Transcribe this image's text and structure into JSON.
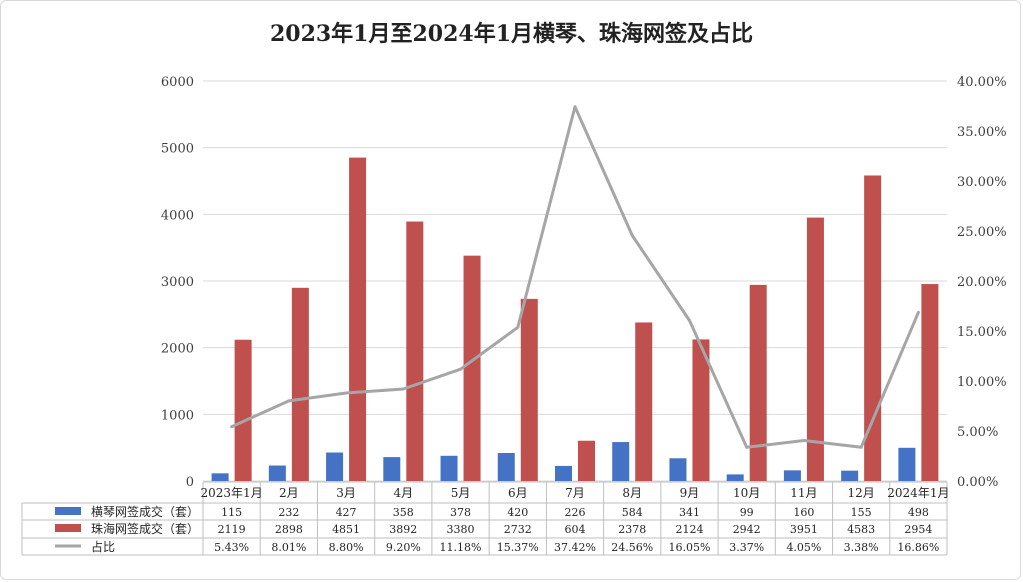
{
  "chart_data": {
    "type": "bar",
    "title": "2023年1月至2024年1月横琴、珠海网签及占比",
    "categories": [
      "2023年1月",
      "2月",
      "3月",
      "4月",
      "5月",
      "6月",
      "7月",
      "8月",
      "9月",
      "10月",
      "11月",
      "12月",
      "2024年1月"
    ],
    "series": [
      {
        "name": "横琴网签成交（套）",
        "type": "bar",
        "axis": "left",
        "color": "#4472c4",
        "values": [
          115,
          232,
          427,
          358,
          378,
          420,
          226,
          584,
          341,
          99,
          160,
          155,
          498
        ]
      },
      {
        "name": "珠海网签成交（套）",
        "type": "bar",
        "axis": "left",
        "color": "#c0504d",
        "values": [
          2119,
          2898,
          4851,
          3892,
          3380,
          2732,
          604,
          2378,
          2124,
          2942,
          3951,
          4583,
          2954
        ]
      },
      {
        "name": "占比",
        "type": "line",
        "axis": "right",
        "color": "#a6a6a6",
        "values": [
          5.43,
          8.01,
          8.8,
          9.2,
          11.18,
          15.37,
          37.42,
          24.56,
          16.05,
          3.37,
          4.05,
          3.38,
          16.86
        ],
        "labels": [
          "5.43%",
          "8.01%",
          "8.80%",
          "9.20%",
          "11.18%",
          "15.37%",
          "37.42%",
          "24.56%",
          "16.05%",
          "3.37%",
          "4.05%",
          "3.38%",
          "16.86%"
        ]
      }
    ],
    "ylim": [
      0,
      6000
    ],
    "y_ticks": [
      0,
      1000,
      2000,
      3000,
      4000,
      5000,
      6000
    ],
    "y2lim": [
      0,
      40
    ],
    "y2_ticks": [
      "0.00%",
      "5.00%",
      "10.00%",
      "15.00%",
      "20.00%",
      "25.00%",
      "30.00%",
      "35.00%",
      "40.00%"
    ],
    "grid": true,
    "legend": "data-table-below"
  }
}
